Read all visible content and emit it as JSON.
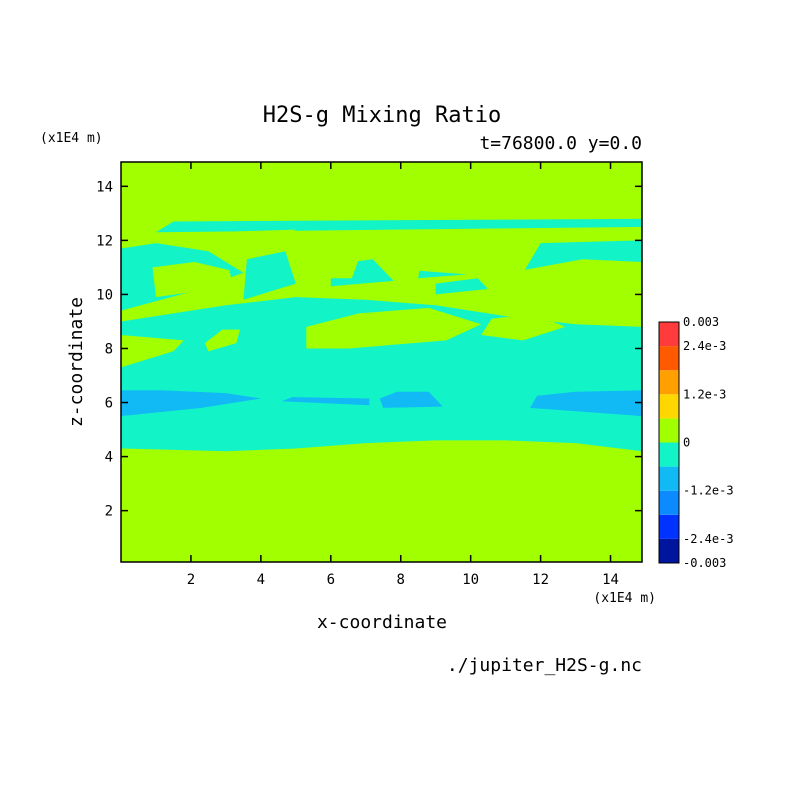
{
  "chart_data": {
    "type": "heatmap",
    "title": "H2S-g Mixing Ratio",
    "subtitle": "t=76800.0 y=0.0",
    "xlabel": "x-coordinate",
    "ylabel": "z-coordinate",
    "x_unit": "(x1E4 m)",
    "y_unit": "(x1E4 m)",
    "source_file": "./jupiter_H2S-g.nc",
    "xlim": [
      0,
      14.9
    ],
    "ylim": [
      0.1,
      14.9
    ],
    "x_ticks": [
      2,
      4,
      6,
      8,
      10,
      12,
      14
    ],
    "y_ticks": [
      2,
      4,
      6,
      8,
      10,
      12,
      14
    ],
    "colorbar": {
      "levels": [
        -0.003,
        -0.0024,
        -0.0018,
        -0.0012,
        -0.0006,
        0,
        0.0006,
        0.0012,
        0.0018,
        0.0024,
        0.003
      ],
      "colors": [
        "#00159e",
        "#0033ff",
        "#0b8bff",
        "#11b9f5",
        "#13f3c8",
        "#a2ff00",
        "#ffd700",
        "#ff9f00",
        "#ff5a00",
        "#ff3b3b"
      ],
      "labels": [
        {
          "text": "0.003",
          "value": 0.003
        },
        {
          "text": "2.4e-3",
          "value": 0.0024
        },
        {
          "text": "1.2e-3",
          "value": 0.0012
        },
        {
          "text": "0",
          "value": 0
        },
        {
          "text": "-1.2e-3",
          "value": -0.0012
        },
        {
          "text": "-2.4e-3",
          "value": -0.0024
        },
        {
          "text": "-0.003",
          "value": -0.003
        }
      ]
    },
    "background_value": 0.0003,
    "regions": [
      {
        "value": -0.0003,
        "points": [
          [
            0,
            4.3
          ],
          [
            3,
            4.2
          ],
          [
            5,
            4.3
          ],
          [
            7,
            4.5
          ],
          [
            9,
            4.6
          ],
          [
            11,
            4.6
          ],
          [
            13,
            4.5
          ],
          [
            14.9,
            4.2
          ],
          [
            14.9,
            8.8
          ],
          [
            13,
            8.9
          ],
          [
            11,
            9.2
          ],
          [
            9,
            9.6
          ],
          [
            7,
            9.8
          ],
          [
            5,
            9.9
          ],
          [
            3,
            9.6
          ],
          [
            1.5,
            9.3
          ],
          [
            0,
            9.0
          ]
        ]
      },
      {
        "value": -0.0003,
        "points": [
          [
            0,
            7.3
          ],
          [
            2,
            7.3
          ],
          [
            1.5,
            8.2
          ],
          [
            0.5,
            8.8
          ],
          [
            0,
            8.9
          ]
        ]
      },
      {
        "value": -0.0003,
        "points": [
          [
            0,
            9.4
          ],
          [
            2,
            10.1
          ],
          [
            3.5,
            10.8
          ],
          [
            2.5,
            11.6
          ],
          [
            1,
            11.9
          ],
          [
            0,
            11.7
          ]
        ]
      },
      {
        "value": -0.0003,
        "points": [
          [
            3.5,
            9.8
          ],
          [
            5,
            10.4
          ],
          [
            4.7,
            11.6
          ],
          [
            3.6,
            11.3
          ]
        ]
      },
      {
        "value": -0.0003,
        "points": [
          [
            6,
            10.3
          ],
          [
            7.8,
            10.5
          ],
          [
            7.2,
            11.3
          ],
          [
            6,
            11.1
          ]
        ]
      },
      {
        "value": -0.0003,
        "points": [
          [
            8.5,
            10.6
          ],
          [
            10.5,
            10.8
          ],
          [
            10.3,
            11.7
          ],
          [
            8.6,
            11.4
          ]
        ]
      },
      {
        "value": -0.0003,
        "points": [
          [
            11.5,
            10.8
          ],
          [
            14.9,
            11.2
          ],
          [
            14.9,
            12.0
          ],
          [
            12,
            11.9
          ]
        ]
      },
      {
        "value": -0.0003,
        "points": [
          [
            1,
            12.3
          ],
          [
            14.9,
            12.5
          ],
          [
            14.9,
            12.8
          ],
          [
            1.5,
            12.7
          ]
        ]
      },
      {
        "value": -0.0003,
        "points": [
          [
            9,
            10.0
          ],
          [
            10.5,
            10.2
          ],
          [
            10.2,
            10.6
          ],
          [
            9,
            10.4
          ]
        ]
      },
      {
        "value": 0.0003,
        "points": [
          [
            0,
            7.3
          ],
          [
            1.5,
            7.9
          ],
          [
            1.8,
            8.3
          ],
          [
            0,
            8.5
          ]
        ]
      },
      {
        "value": 0.0003,
        "points": [
          [
            2.5,
            7.9
          ],
          [
            3.3,
            8.2
          ],
          [
            3.4,
            8.7
          ],
          [
            2.9,
            8.7
          ],
          [
            2.4,
            8.2
          ]
        ]
      },
      {
        "value": 0.0003,
        "points": [
          [
            5.3,
            8.0
          ],
          [
            6.5,
            8.0
          ],
          [
            9.3,
            8.3
          ],
          [
            10.3,
            8.9
          ],
          [
            8.8,
            9.5
          ],
          [
            6.8,
            9.3
          ],
          [
            5.3,
            8.8
          ]
        ]
      },
      {
        "value": 0.0003,
        "points": [
          [
            10.3,
            8.5
          ],
          [
            11.5,
            8.3
          ],
          [
            12.7,
            8.8
          ],
          [
            11.8,
            9.3
          ],
          [
            10.6,
            9.1
          ]
        ]
      },
      {
        "value": 0.0003,
        "points": [
          [
            11.2,
            9.3
          ],
          [
            12.5,
            9.5
          ],
          [
            14.9,
            9.5
          ],
          [
            14.9,
            11.2
          ],
          [
            13.2,
            11.3
          ],
          [
            11.5,
            10.9
          ],
          [
            10.3,
            10.1
          ]
        ]
      },
      {
        "value": 0.0003,
        "points": [
          [
            8.3,
            10.9
          ],
          [
            10.3,
            10.7
          ],
          [
            11.3,
            11.1
          ],
          [
            10.3,
            11.8
          ],
          [
            8.5,
            11.6
          ]
        ]
      },
      {
        "value": 0.0003,
        "points": [
          [
            1,
            9.9
          ],
          [
            3.2,
            10.3
          ],
          [
            3.1,
            10.9
          ],
          [
            2.1,
            11.2
          ],
          [
            0.9,
            11.0
          ]
        ]
      },
      {
        "value": 0.0003,
        "points": [
          [
            5.3,
            10.6
          ],
          [
            6.6,
            10.6
          ],
          [
            6.8,
            11.3
          ],
          [
            6.0,
            11.6
          ],
          [
            5.3,
            11.3
          ]
        ]
      },
      {
        "value": 0.0003,
        "points": [
          [
            1.4,
            12.0
          ],
          [
            4.5,
            12.0
          ],
          [
            5.0,
            12.4
          ],
          [
            2.5,
            12.3
          ]
        ]
      },
      {
        "value": 0.0003,
        "points": [
          [
            11.7,
            12.0
          ],
          [
            13.0,
            12.0
          ],
          [
            14.9,
            12.1
          ],
          [
            14.9,
            12.3
          ],
          [
            12.5,
            12.3
          ]
        ]
      },
      {
        "value": -0.0009,
        "points": [
          [
            0,
            5.5
          ],
          [
            2.3,
            5.8
          ],
          [
            4.0,
            6.15
          ],
          [
            3.0,
            6.35
          ],
          [
            1.2,
            6.45
          ],
          [
            0,
            6.45
          ]
        ]
      },
      {
        "value": -0.0009,
        "points": [
          [
            4.6,
            6.05
          ],
          [
            7.1,
            5.9
          ],
          [
            7.1,
            6.15
          ],
          [
            4.9,
            6.2
          ]
        ]
      },
      {
        "value": -0.0009,
        "points": [
          [
            7.5,
            5.8
          ],
          [
            9.2,
            5.85
          ],
          [
            8.8,
            6.4
          ],
          [
            7.9,
            6.4
          ],
          [
            7.4,
            6.15
          ]
        ]
      },
      {
        "value": -0.0009,
        "points": [
          [
            11.7,
            5.8
          ],
          [
            14.9,
            5.5
          ],
          [
            14.9,
            6.45
          ],
          [
            13.0,
            6.4
          ],
          [
            11.9,
            6.25
          ]
        ]
      }
    ]
  }
}
